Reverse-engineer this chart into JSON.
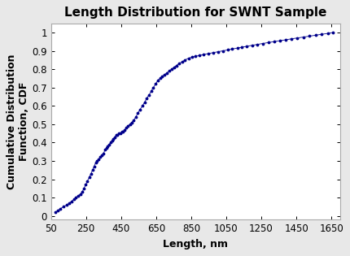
{
  "title": "Length Distribution for SWNT Sample",
  "xlabel": "Length, nm",
  "ylabel": "Cumulative Distribution\nFunction, CDF",
  "xlim": [
    50,
    1700
  ],
  "ylim": [
    -0.02,
    1.05
  ],
  "xticks": [
    50,
    250,
    450,
    650,
    850,
    1050,
    1250,
    1450,
    1650
  ],
  "xticklabels": [
    "50",
    "250",
    "450",
    "650",
    "850",
    "1050",
    "1250",
    "1450",
    "1650"
  ],
  "yticks": [
    0,
    0.1,
    0.2,
    0.3,
    0.4,
    0.5,
    0.6,
    0.7,
    0.8,
    0.9,
    1
  ],
  "yticklabels": [
    "0",
    "0.1",
    "0.2",
    "0.3",
    "0.4",
    "0.5",
    "0.6",
    "0.7",
    "0.8",
    "0.9",
    "1"
  ],
  "line_color": "#00008B",
  "marker": ".",
  "markersize": 3.5,
  "linewidth": 0.6,
  "background_color": "#ffffff",
  "outer_bg": "#e8e8e8",
  "title_fontsize": 11,
  "label_fontsize": 9,
  "tick_fontsize": 8.5,
  "x_data": [
    75,
    90,
    105,
    120,
    140,
    155,
    168,
    180,
    193,
    205,
    218,
    228,
    238,
    248,
    258,
    268,
    278,
    287,
    296,
    305,
    314,
    323,
    332,
    341,
    350,
    358,
    366,
    374,
    382,
    390,
    398,
    406,
    414,
    422,
    430,
    438,
    446,
    454,
    462,
    470,
    480,
    490,
    500,
    510,
    522,
    534,
    546,
    558,
    572,
    584,
    596,
    610,
    622,
    634,
    648,
    660,
    673,
    685,
    698,
    712,
    725,
    738,
    752,
    765,
    780,
    798,
    815,
    835,
    855,
    875,
    898,
    922,
    948,
    975,
    1003,
    1030,
    1058,
    1085,
    1113,
    1140,
    1168,
    1198,
    1228,
    1258,
    1290,
    1322,
    1355,
    1388,
    1420,
    1455,
    1490,
    1525,
    1560,
    1595,
    1630,
    1660
  ],
  "y_data": [
    0.02,
    0.03,
    0.04,
    0.05,
    0.06,
    0.07,
    0.08,
    0.09,
    0.1,
    0.11,
    0.12,
    0.13,
    0.15,
    0.17,
    0.19,
    0.21,
    0.23,
    0.25,
    0.27,
    0.29,
    0.3,
    0.31,
    0.32,
    0.33,
    0.34,
    0.36,
    0.37,
    0.38,
    0.39,
    0.4,
    0.41,
    0.42,
    0.43,
    0.44,
    0.44,
    0.45,
    0.45,
    0.46,
    0.46,
    0.47,
    0.48,
    0.49,
    0.5,
    0.51,
    0.52,
    0.54,
    0.56,
    0.58,
    0.6,
    0.62,
    0.64,
    0.66,
    0.68,
    0.7,
    0.72,
    0.74,
    0.75,
    0.76,
    0.77,
    0.78,
    0.79,
    0.8,
    0.81,
    0.82,
    0.83,
    0.84,
    0.85,
    0.86,
    0.865,
    0.87,
    0.875,
    0.88,
    0.885,
    0.89,
    0.895,
    0.9,
    0.905,
    0.91,
    0.915,
    0.92,
    0.925,
    0.93,
    0.935,
    0.94,
    0.945,
    0.95,
    0.955,
    0.96,
    0.965,
    0.97,
    0.975,
    0.98,
    0.985,
    0.99,
    0.995,
    1.0
  ]
}
